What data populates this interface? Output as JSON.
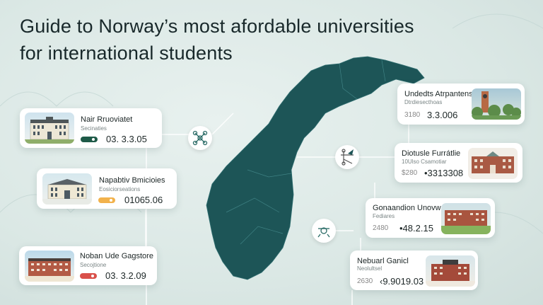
{
  "title_line1": "Guide to Norway’s most afordable universities",
  "title_line2": "for international students",
  "colors": {
    "map": "#1d5557",
    "green": "#1e5a48",
    "orange": "#f2b24c",
    "red": "#d9504a"
  },
  "left_cards": [
    {
      "name": "Nair Rruoviatet",
      "sub": "Secinaties",
      "value": "03. 3.3.05",
      "pill": "#1e5a48",
      "building": "white-classical"
    },
    {
      "name": "Napabtiv Bmicioies",
      "sub": "Eosiciorseations",
      "value": "01065.06",
      "pill": "#f2b24c",
      "building": "white-classical"
    },
    {
      "name": "Noban Ude Gagstore",
      "sub": "Secojtione",
      "value": "03. 3.2.09",
      "pill": "#d9504a",
      "building": "red-brick"
    }
  ],
  "right_cards": [
    {
      "name": "Undedts Atrpantens",
      "sub": "Dtrdiesecthoas",
      "small": "3180",
      "value": "3.3.006",
      "building": "tower-forest"
    },
    {
      "name": "Diotusle Furrátlie",
      "sub": "10Ulso Csamotiar",
      "small": "$280",
      "value": "•3313308",
      "building": "red-brick"
    },
    {
      "name": "Gonaandion Unovwas",
      "sub": "Fediares",
      "small": "2480",
      "value": "•48.2.15",
      "building": "red-brick"
    },
    {
      "name": "Nebuarl Ganicl",
      "sub": "Neolultsel",
      "small": "2630",
      "value": "‹9.9019.03",
      "building": "red-brick"
    }
  ],
  "node_icons": [
    "drone-icon",
    "drone-icon",
    "drone-icon"
  ]
}
